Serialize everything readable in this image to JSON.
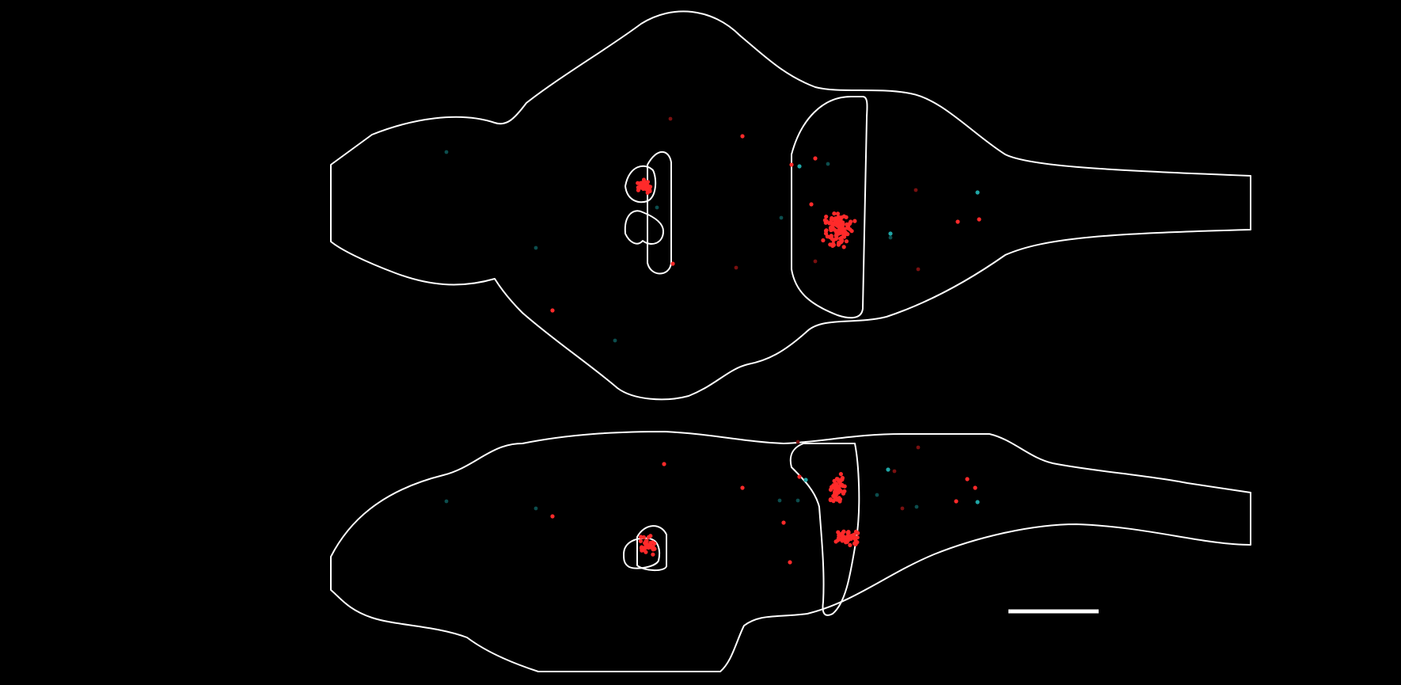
{
  "figure": {
    "description_panels": [
      "dorsal-view",
      "lateral-view"
    ],
    "colors": {
      "background": "#000000",
      "outline": "#ffffff",
      "labeled_cells_primary": "#ff2a2a",
      "labeled_cells_secondary": "#1fa6a6"
    },
    "panels": [
      {
        "name": "dorsal-view",
        "cell_groups": [
          "forebrain-cluster",
          "hindbrain-cluster",
          "scattered"
        ]
      },
      {
        "name": "lateral-view",
        "cell_groups": [
          "forebrain-cluster",
          "hindbrain-cluster",
          "scattered"
        ]
      }
    ],
    "scale_bar": {
      "present": true
    }
  }
}
